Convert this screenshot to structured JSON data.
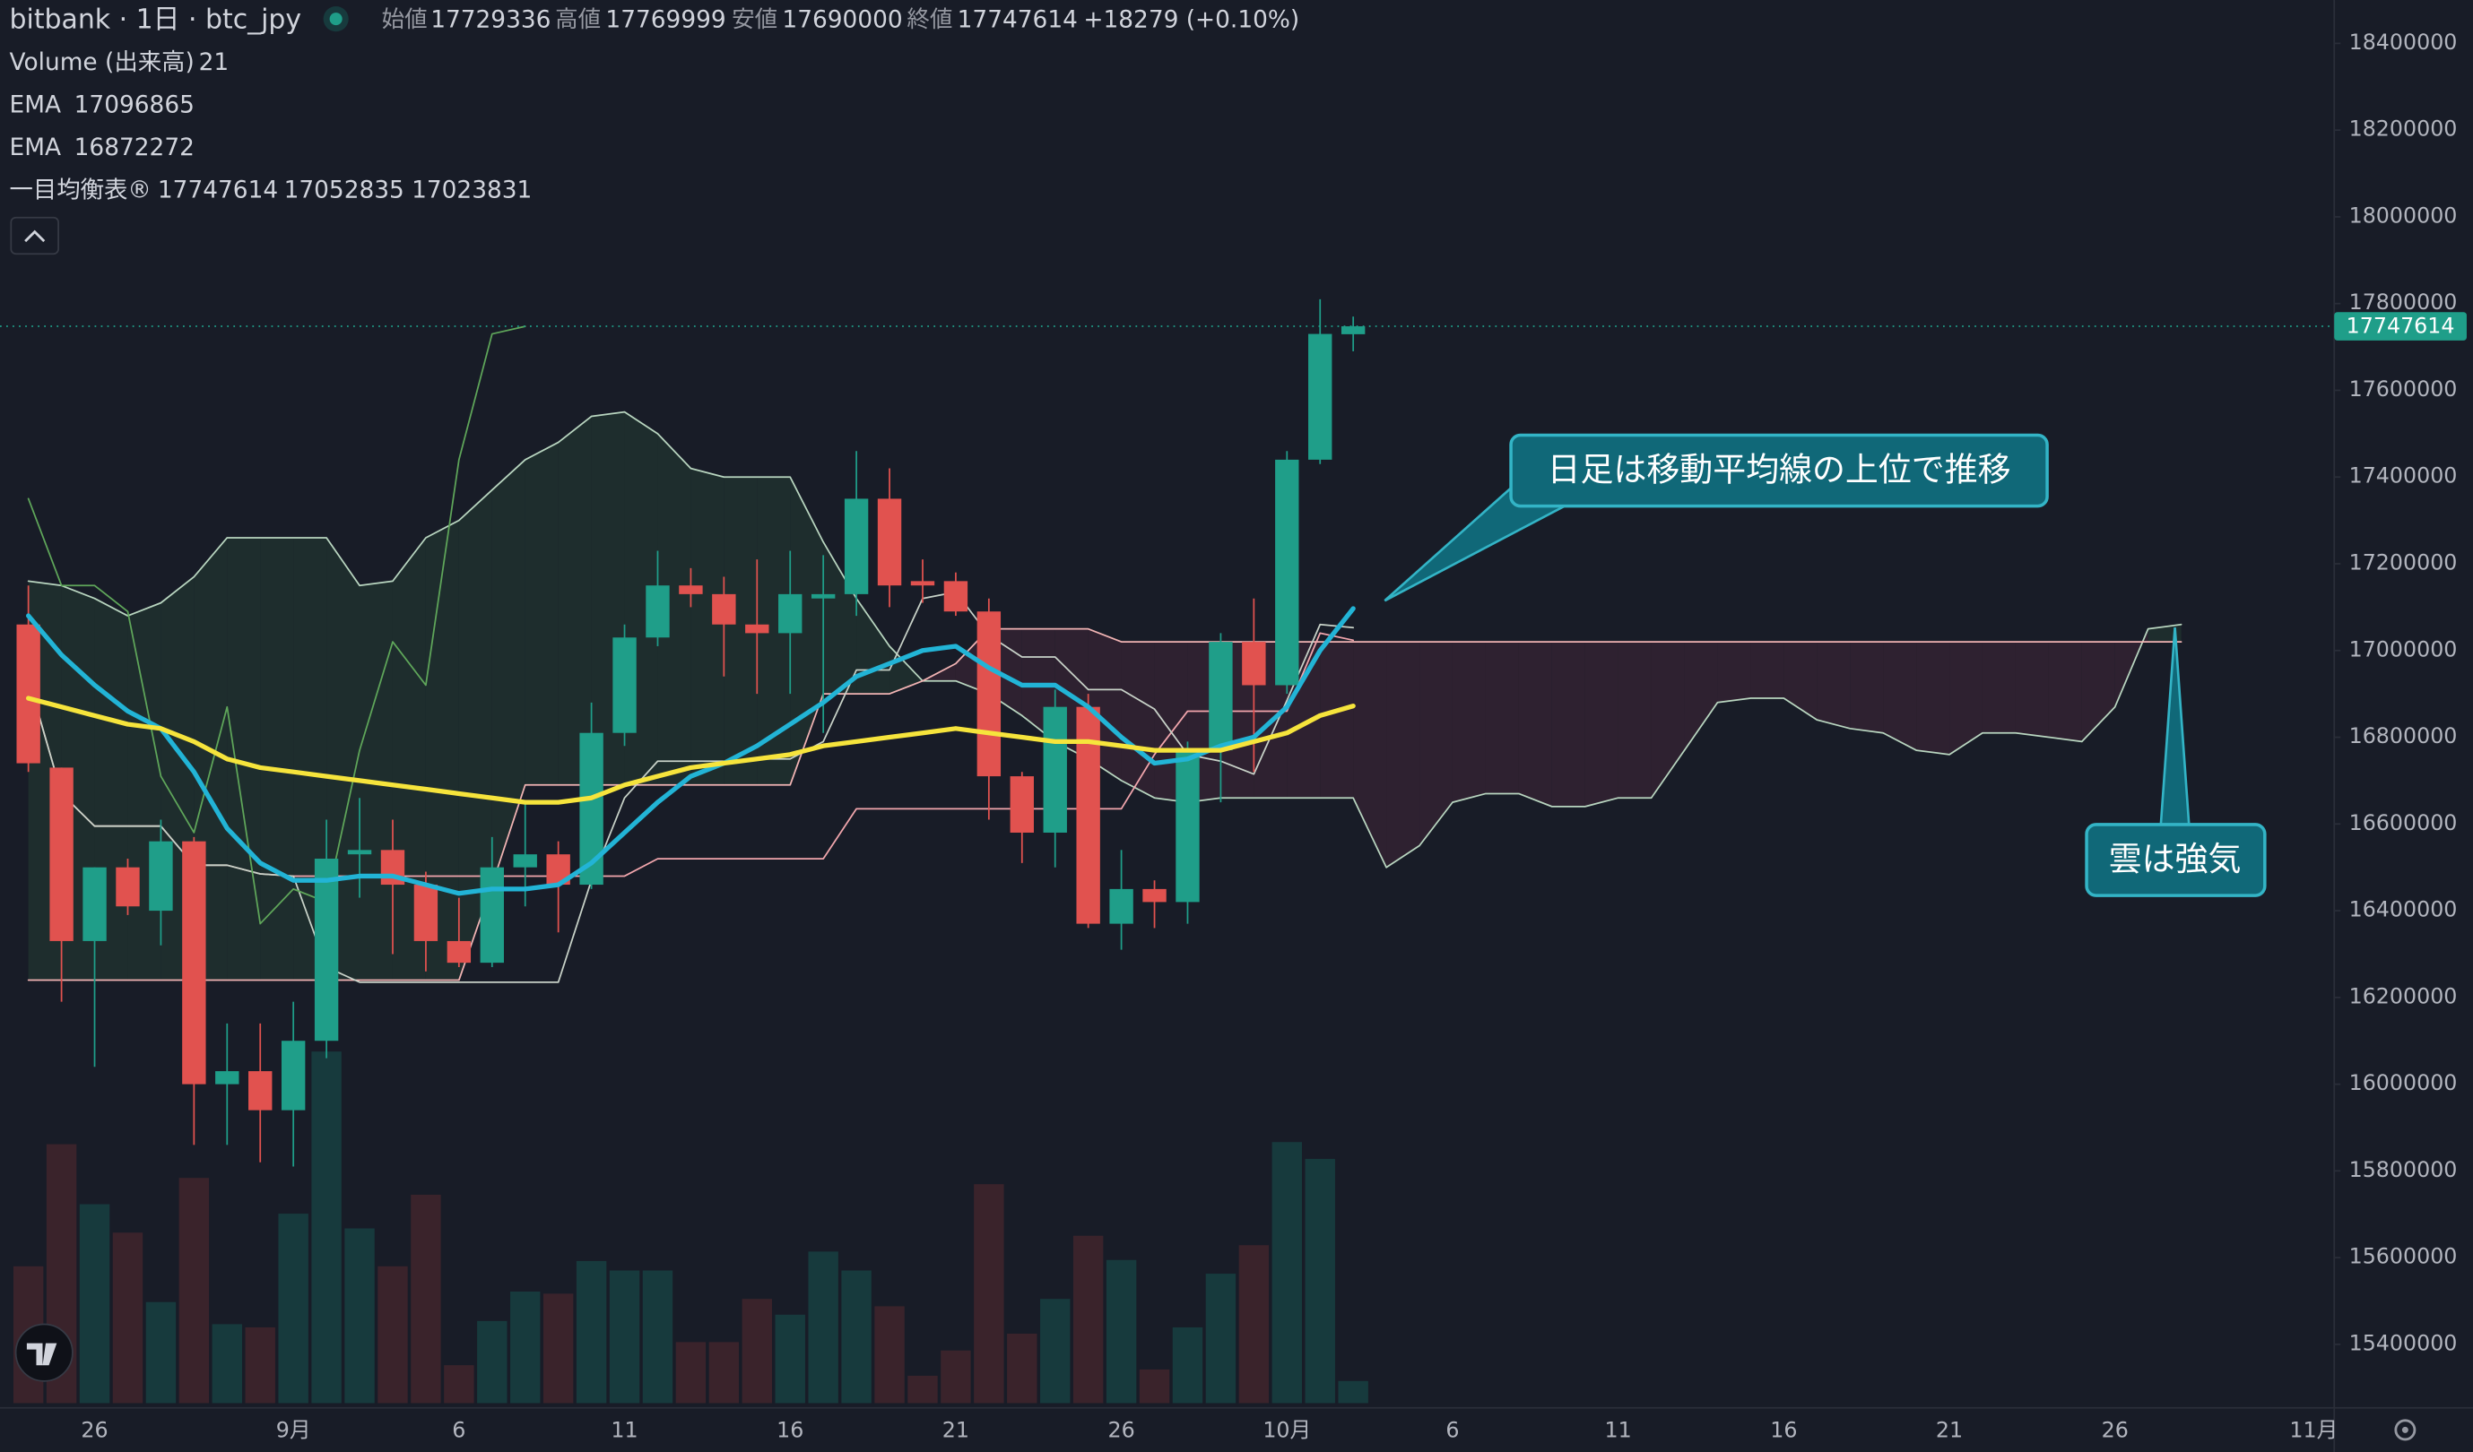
{
  "chart_data": {
    "type": "candlestick",
    "title": "bitbank · 1日 · btc_jpy",
    "header_labels": {
      "open": "始値",
      "high": "高値",
      "low": "安値",
      "close": "終値"
    },
    "change_label": "+18279 (+0.10%)",
    "categories": [
      null,
      null,
      "26",
      null,
      null,
      null,
      null,
      null,
      "9月",
      null,
      null,
      null,
      null,
      "6",
      null,
      null,
      null,
      null,
      "11",
      null,
      null,
      null,
      null,
      "16",
      null,
      null,
      null,
      null,
      "21",
      null,
      null,
      null,
      null,
      "26",
      null,
      null,
      null,
      null,
      "10月",
      null,
      null,
      null,
      null,
      "6",
      null,
      null,
      null,
      null,
      "11",
      null,
      null,
      null,
      null,
      "16",
      null,
      null,
      null,
      null,
      "21",
      null,
      null,
      null,
      null,
      "26",
      null,
      null,
      null,
      null,
      null,
      "11月"
    ],
    "ylim": [
      15250000,
      18500000
    ],
    "yticks": [
      15400000,
      15600000,
      15800000,
      16000000,
      16200000,
      16400000,
      16600000,
      16800000,
      17000000,
      17200000,
      17400000,
      17600000,
      17800000,
      18000000,
      18200000,
      18400000
    ],
    "up_color": "#1f9e89",
    "down_color": "#e1524f",
    "candles": {
      "open": [
        17060000,
        16730000,
        16330000,
        16500000,
        16400000,
        16560000,
        16000000,
        16030000,
        15940000,
        16100000,
        16530000,
        16540000,
        16460000,
        16330000,
        16280000,
        16500000,
        16530000,
        16460000,
        16810000,
        17030000,
        17150000,
        17130000,
        17060000,
        17040000,
        17120000,
        17130000,
        17350000,
        17160000,
        17160000,
        17090000,
        16710000,
        16580000,
        16870000,
        16370000,
        16450000,
        16420000,
        16770000,
        17020000,
        16920000,
        17440000,
        17729336,
        null,
        null,
        null,
        null,
        null,
        null,
        null,
        null,
        null,
        null,
        null,
        null,
        null,
        null,
        null,
        null,
        null,
        null,
        null,
        null,
        null,
        null,
        null,
        null,
        null,
        null,
        null,
        null,
        null
      ],
      "high": [
        17150000,
        16730000,
        16500000,
        16520000,
        16610000,
        16570000,
        16140000,
        16140000,
        16190000,
        16610000,
        16660000,
        16610000,
        16490000,
        16430000,
        16570000,
        16650000,
        16560000,
        16880000,
        17060000,
        17230000,
        17190000,
        17170000,
        17210000,
        17230000,
        17220000,
        17460000,
        17420000,
        17210000,
        17180000,
        17120000,
        16720000,
        16910000,
        16900000,
        16540000,
        16470000,
        16790000,
        17040000,
        17120000,
        17460000,
        17810000,
        17769999,
        null,
        null,
        null,
        null,
        null,
        null,
        null,
        null,
        null,
        null,
        null,
        null,
        null,
        null,
        null,
        null,
        null,
        null,
        null,
        null,
        null,
        null,
        null,
        null,
        null,
        null,
        null,
        null,
        null
      ],
      "low": [
        16720000,
        16190000,
        16040000,
        16390000,
        16320000,
        15860000,
        15860000,
        15820000,
        15810000,
        16060000,
        16430000,
        16300000,
        16260000,
        16270000,
        16270000,
        16410000,
        16350000,
        16450000,
        16780000,
        17010000,
        17100000,
        16940000,
        16900000,
        16900000,
        16810000,
        17080000,
        17100000,
        17110000,
        17080000,
        16610000,
        16510000,
        16500000,
        16360000,
        16310000,
        16360000,
        16370000,
        16650000,
        16720000,
        16900000,
        17430000,
        17690000,
        null,
        null,
        null,
        null,
        null,
        null,
        null,
        null,
        null,
        null,
        null,
        null,
        null,
        null,
        null,
        null,
        null,
        null,
        null,
        null,
        null,
        null,
        null,
        null,
        null,
        null,
        null,
        null,
        null
      ],
      "close": [
        16740000,
        16330000,
        16500000,
        16410000,
        16560000,
        16000000,
        16030000,
        15940000,
        16100000,
        16520000,
        16540000,
        16460000,
        16330000,
        16280000,
        16500000,
        16530000,
        16460000,
        16810000,
        17030000,
        17150000,
        17130000,
        17060000,
        17040000,
        17130000,
        17130000,
        17350000,
        17150000,
        17150000,
        17090000,
        16710000,
        16580000,
        16870000,
        16370000,
        16450000,
        16420000,
        16770000,
        17020000,
        16920000,
        17440000,
        17730000,
        17747614,
        null,
        null,
        null,
        null,
        null,
        null,
        null,
        null,
        null,
        null,
        null,
        null,
        null,
        null,
        null,
        null,
        null,
        null,
        null,
        null,
        null,
        null,
        null,
        null,
        null,
        null,
        null,
        null,
        null
      ]
    },
    "volume": {
      "name": "Volume (出来高)",
      "up_color": "#173a3d",
      "down_color": "#3a232b",
      "values": [
        130,
        246,
        189,
        162,
        96,
        214,
        75,
        72,
        180,
        334,
        166,
        130,
        198,
        36,
        78,
        106,
        104,
        135,
        126,
        126,
        58,
        58,
        99,
        84,
        144,
        126,
        92,
        26,
        50,
        208,
        66,
        99,
        159,
        136,
        32,
        72,
        123,
        150,
        248,
        232,
        21,
        null,
        null,
        null,
        null,
        null,
        null,
        null,
        null,
        null,
        null,
        null,
        null,
        null,
        null,
        null,
        null,
        null,
        null,
        null,
        null,
        null,
        null,
        null,
        null,
        null,
        null,
        null,
        null,
        null
      ]
    },
    "series": [
      {
        "name": "EMA",
        "color": "#22b4d6",
        "values": [
          17080000,
          16990000,
          16920000,
          16860000,
          16820000,
          16720000,
          16590000,
          16510000,
          16470000,
          16470000,
          16480000,
          16480000,
          16460000,
          16440000,
          16450000,
          16450000,
          16460000,
          16510000,
          16580000,
          16650000,
          16710000,
          16740000,
          16780000,
          16830000,
          16880000,
          16940000,
          16970000,
          17000000,
          17010000,
          16960000,
          16920000,
          16920000,
          16870000,
          16800000,
          16740000,
          16750000,
          16780000,
          16800000,
          16870000,
          17000000,
          17096865,
          null,
          null,
          null,
          null,
          null,
          null,
          null,
          null,
          null,
          null,
          null,
          null,
          null,
          null,
          null,
          null,
          null,
          null,
          null,
          null,
          null,
          null,
          null,
          null,
          null,
          null,
          null,
          null,
          null
        ]
      },
      {
        "name": "EMA",
        "color": "#f6e43c",
        "values": [
          16890000,
          16870000,
          16850000,
          16830000,
          16820000,
          16790000,
          16750000,
          16730000,
          16720000,
          16710000,
          16700000,
          16690000,
          16680000,
          16670000,
          16660000,
          16650000,
          16650000,
          16660000,
          16690000,
          16710000,
          16730000,
          16740000,
          16750000,
          16760000,
          16780000,
          16790000,
          16800000,
          16810000,
          16820000,
          16810000,
          16800000,
          16790000,
          16790000,
          16780000,
          16770000,
          16770000,
          16770000,
          16790000,
          16810000,
          16850000,
          16872272,
          null,
          null,
          null,
          null,
          null,
          null,
          null,
          null,
          null,
          null,
          null,
          null,
          null,
          null,
          null,
          null,
          null,
          null,
          null,
          null,
          null,
          null,
          null,
          null,
          null,
          null,
          null,
          null,
          null
        ]
      }
    ],
    "ichimoku": {
      "name": "一目均衡表®",
      "cloud_up_color": "#1e2d2d",
      "cloud_down_color": "#2e2130",
      "lagging": {
        "color": "#5fa65a",
        "values": [
          17350000,
          17150000,
          17150000,
          17090000,
          16710000,
          16580000,
          16870000,
          16370000,
          16450000,
          16420000,
          16770000,
          17020000,
          16920000,
          17440000,
          17730000,
          17747614,
          null,
          null,
          null,
          null,
          null,
          null,
          null,
          null,
          null,
          null,
          null,
          null,
          null,
          null,
          null,
          null,
          null,
          null,
          null,
          null,
          null,
          null,
          null,
          null,
          null,
          null,
          null,
          null,
          null,
          null,
          null,
          null,
          null,
          null,
          null,
          null,
          null,
          null,
          null,
          null,
          null,
          null,
          null,
          null,
          null,
          null,
          null,
          null,
          null,
          null,
          null,
          null,
          null,
          null
        ]
      },
      "conversion": {
        "color": "#c8d2c8",
        "values": [
          16935000,
          16670000,
          16595000,
          16595000,
          16595000,
          16505000,
          16505000,
          16485000,
          16480000,
          16270000,
          16235000,
          16235000,
          16235000,
          16235000,
          16235000,
          16235000,
          16235000,
          16470000,
          16660000,
          16745000,
          16745000,
          16745000,
          16750000,
          16750000,
          16790000,
          16955000,
          16955000,
          17120000,
          17135000,
          17035000,
          16985000,
          16985000,
          16910000,
          16910000,
          16865000,
          16760000,
          16745000,
          16715000,
          16885000,
          17060000,
          17052835,
          null,
          null,
          null,
          null,
          null,
          null,
          null,
          null,
          null,
          null,
          null,
          null,
          null,
          null,
          null,
          null,
          null,
          null,
          null,
          null,
          null,
          null,
          null,
          null,
          null,
          null,
          null,
          null,
          null
        ]
      },
      "base": {
        "color": "#f2a6ad",
        "values": [
          16935000,
          16670000,
          16595000,
          16595000,
          16595000,
          16505000,
          16505000,
          16485000,
          16480000,
          16480000,
          16480000,
          16480000,
          16480000,
          16480000,
          16480000,
          16480000,
          16480000,
          16480000,
          16480000,
          16520000,
          16520000,
          16520000,
          16520000,
          16520000,
          16520000,
          16635000,
          16635000,
          16635000,
          16635000,
          16635000,
          16635000,
          16635000,
          16635000,
          16635000,
          16760000,
          16860000,
          16860000,
          16860000,
          16860000,
          17040000,
          17023831,
          null,
          null,
          null,
          null,
          null,
          null,
          null,
          null,
          null,
          null,
          null,
          null,
          null,
          null,
          null,
          null,
          null,
          null,
          null,
          null,
          null,
          null,
          null,
          null,
          null,
          null,
          null,
          null,
          null
        ]
      },
      "span_a": {
        "color": "#b9d6c0",
        "values": [
          17160000,
          17150000,
          17120000,
          17080000,
          17110000,
          17170000,
          17260000,
          17260000,
          17260000,
          17260000,
          17150000,
          17160000,
          17260000,
          17300000,
          17370000,
          17440000,
          17480000,
          17540000,
          17550000,
          17500000,
          17420000,
          17400000,
          17400000,
          17400000,
          17250000,
          17120000,
          17010000,
          16930000,
          16930000,
          16900000,
          16850000,
          16790000,
          16750000,
          16700000,
          16660000,
          16650000,
          16660000,
          16660000,
          16660000,
          16660000,
          16660000,
          16500000,
          16550000,
          16650000,
          16670000,
          16670000,
          16640000,
          16640000,
          16660000,
          16660000,
          16770000,
          16880000,
          16890000,
          16890000,
          16840000,
          16820000,
          16810000,
          16770000,
          16760000,
          16810000,
          16810000,
          16800000,
          16790000,
          16870000,
          17050000,
          17060000,
          null,
          null,
          null,
          null
        ]
      },
      "span_b": {
        "color": "#f2b4b4",
        "values": [
          16240000,
          16240000,
          16240000,
          16240000,
          16240000,
          16240000,
          16240000,
          16240000,
          16240000,
          16240000,
          16240000,
          16240000,
          16240000,
          16240000,
          16460000,
          16690000,
          16690000,
          16690000,
          16690000,
          16690000,
          16690000,
          16690000,
          16690000,
          16690000,
          16900000,
          16900000,
          16900000,
          16930000,
          16970000,
          17050000,
          17050000,
          17050000,
          17050000,
          17020000,
          17020000,
          17020000,
          17020000,
          17020000,
          17020000,
          17020000,
          17020000,
          17020000,
          17020000,
          17020000,
          17020000,
          17020000,
          17020000,
          17020000,
          17020000,
          17020000,
          17020000,
          17020000,
          17020000,
          17020000,
          17020000,
          17020000,
          17020000,
          17020000,
          17020000,
          17020000,
          17020000,
          17020000,
          17020000,
          17020000,
          17020000,
          17020000,
          null,
          null,
          null,
          null
        ]
      }
    },
    "annotations": [
      {
        "text": "日足は移動平均線の上位で推移"
      },
      {
        "text": "雲は強気"
      }
    ]
  }
}
